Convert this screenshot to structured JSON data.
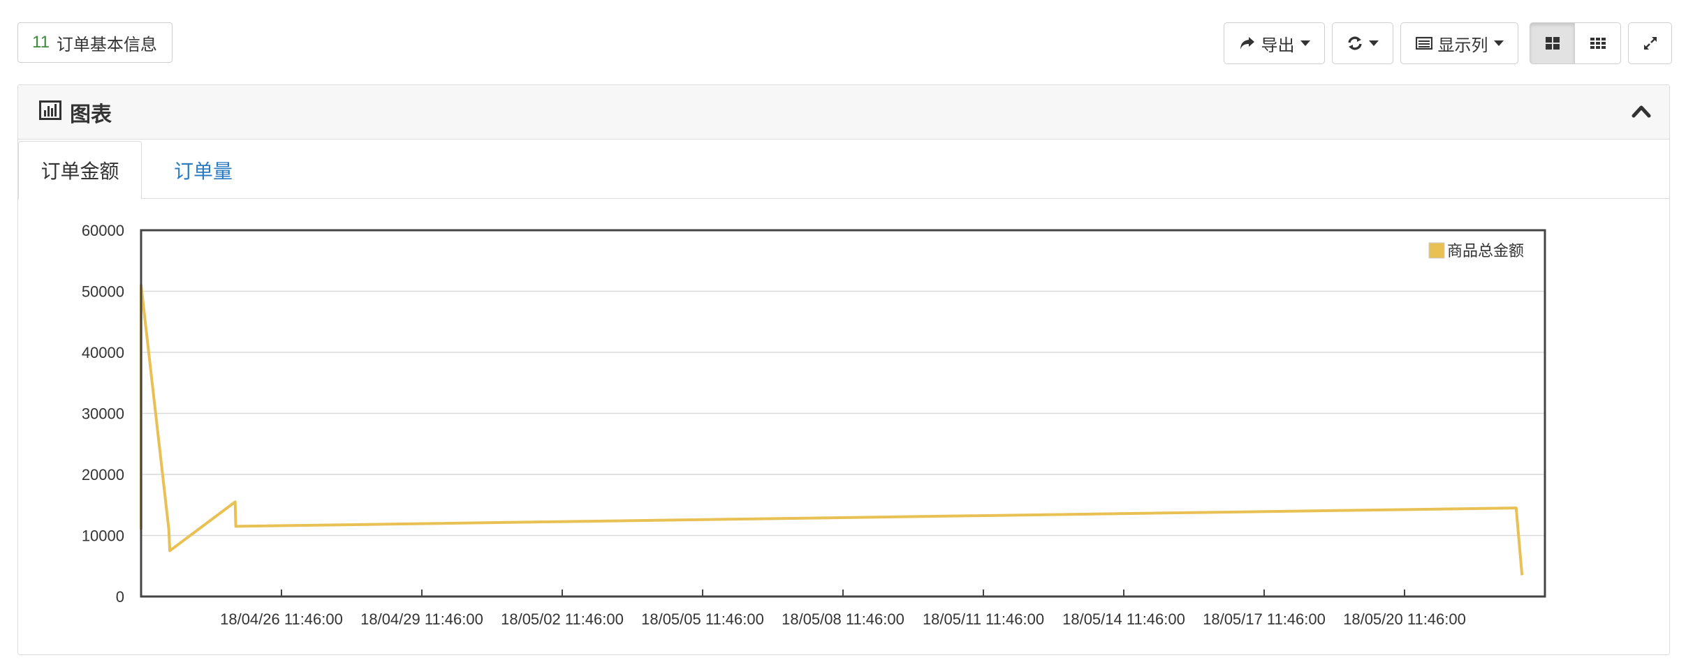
{
  "record_count": {
    "number": "11",
    "label": "订单基本信息"
  },
  "toolbar": {
    "export_label": "导出",
    "columns_label": "显示列",
    "icons": [
      "share-icon",
      "refresh-icon",
      "columns-icon",
      "grid-large-icon",
      "grid-small-icon",
      "fullscreen-icon"
    ]
  },
  "panel": {
    "title": "图表",
    "icon": "bar-chart-icon"
  },
  "tabs": [
    {
      "label": "订单金额",
      "active": true
    },
    {
      "label": "订单量",
      "active": false
    }
  ],
  "colors": {
    "series": "#e8c054",
    "tab_link": "#2a7bc1",
    "count_number": "#3c8a3a"
  },
  "chart_data": {
    "type": "line",
    "title": "",
    "xlabel": "",
    "ylabel": "",
    "ylim": [
      0,
      60000
    ],
    "yticks": [
      0,
      10000,
      20000,
      30000,
      40000,
      50000,
      60000
    ],
    "xlim": [
      "18/04/23 11:46:00",
      "18/05/23 11:46:00"
    ],
    "xticks": [
      "18/04/26 11:46:00",
      "18/04/29 11:46:00",
      "18/05/02 11:46:00",
      "18/05/05 11:46:00",
      "18/05/08 11:46:00",
      "18/05/11 11:46:00",
      "18/05/14 11:46:00",
      "18/05/17 11:46:00",
      "18/05/20 11:46:00"
    ],
    "grid": true,
    "legend": "top-right",
    "series": [
      {
        "name": "商品总金额",
        "points": [
          [
            "18/04/23 11:46:00",
            11000
          ],
          [
            "18/04/23 11:46:00",
            51000
          ],
          [
            "18/04/24 02:00:00",
            11000
          ],
          [
            "18/04/24 02:30:00",
            7500
          ],
          [
            "18/04/25 12:00:00",
            15500
          ],
          [
            "18/04/25 12:20:00",
            11500
          ],
          [
            "18/05/22 21:00:00",
            14500
          ],
          [
            "18/05/23 00:00:00",
            3500
          ]
        ]
      }
    ]
  }
}
